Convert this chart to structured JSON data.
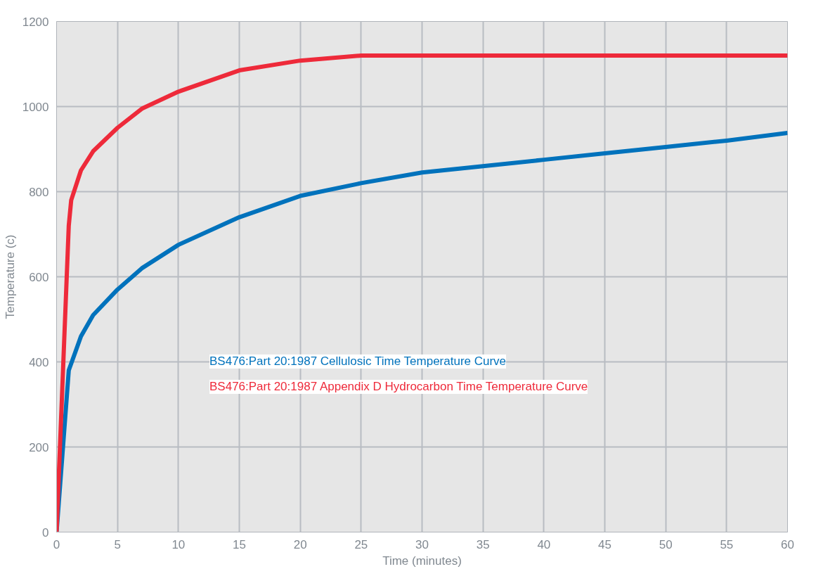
{
  "chart_data": {
    "type": "line",
    "xlabel": "Time (minutes)",
    "ylabel": "Temperature (c)",
    "xlim": [
      0,
      60
    ],
    "xticks": [
      0,
      5,
      10,
      15,
      20,
      25,
      30,
      35,
      40,
      45,
      50,
      55,
      60
    ],
    "ylim": [
      0,
      1200
    ],
    "yticks": [
      0,
      200,
      400,
      600,
      800,
      1000,
      1200
    ],
    "grid": true,
    "legend": "center",
    "line_style": "solid",
    "marker": "none",
    "series": [
      {
        "name": "BS476:Part 20:1987 Cellulosic Time Temperature Curve",
        "color": "#0072bc",
        "x": [
          0,
          1,
          1.5,
          2,
          3,
          5,
          7,
          10,
          15,
          20,
          25,
          30,
          35,
          40,
          45,
          50,
          55,
          60
        ],
        "values": [
          0,
          380,
          420,
          460,
          510,
          570,
          620,
          675,
          740,
          790,
          820,
          845,
          860,
          875,
          890,
          905,
          920,
          938
        ]
      },
      {
        "name": "BS476:Part 20:1987 Appendix D Hydrocarbon Time Temperature Curve",
        "color": "#ee2a3a",
        "x": [
          0,
          1,
          1.2,
          2,
          3,
          5,
          7,
          10,
          15,
          20,
          25,
          30,
          60
        ],
        "values": [
          0,
          720,
          780,
          850,
          895,
          950,
          995,
          1035,
          1085,
          1108,
          1120,
          1120,
          1120
        ]
      }
    ]
  }
}
